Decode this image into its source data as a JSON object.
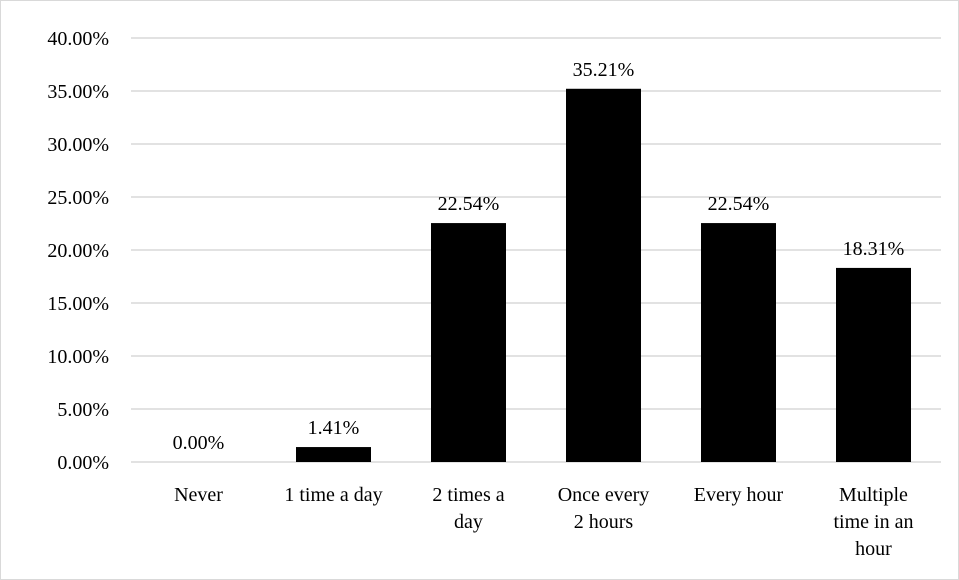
{
  "chart_data": {
    "type": "bar",
    "title": "",
    "xlabel": "",
    "ylabel": "",
    "categories": [
      [
        "Never"
      ],
      [
        "1 time a day"
      ],
      [
        "2 times a",
        "day"
      ],
      [
        "Once every",
        "2 hours"
      ],
      [
        "Every hour"
      ],
      [
        "Multiple",
        "time in an",
        "hour"
      ]
    ],
    "values": [
      0.0,
      1.41,
      22.54,
      35.21,
      22.54,
      18.31
    ],
    "data_labels": [
      "0.00%",
      "1.41%",
      "22.54%",
      "35.21%",
      "22.54%",
      "18.31%"
    ],
    "ylim": [
      0,
      40
    ],
    "yticks": [
      {
        "value": 0,
        "label": "0.00%"
      },
      {
        "value": 5,
        "label": "5.00%"
      },
      {
        "value": 10,
        "label": "10.00%"
      },
      {
        "value": 15,
        "label": "15.00%"
      },
      {
        "value": 20,
        "label": "20.00%"
      },
      {
        "value": 25,
        "label": "25.00%"
      },
      {
        "value": 30,
        "label": "30.00%"
      },
      {
        "value": 35,
        "label": "35.00%"
      },
      {
        "value": 40,
        "label": "40.00%"
      }
    ],
    "grid": true,
    "legend": "none",
    "colors": {
      "bar": "#000000",
      "grid": "#d9d9d9",
      "axis": "#d9d9d9",
      "text": "#000000"
    }
  }
}
